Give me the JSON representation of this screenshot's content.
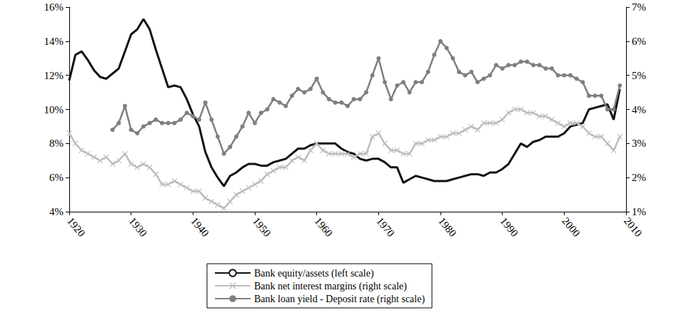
{
  "chart_data": {
    "type": "line",
    "x": [
      1920,
      1921,
      1922,
      1923,
      1924,
      1925,
      1926,
      1927,
      1928,
      1929,
      1930,
      1931,
      1932,
      1933,
      1934,
      1935,
      1936,
      1937,
      1938,
      1939,
      1940,
      1941,
      1942,
      1943,
      1944,
      1945,
      1946,
      1947,
      1948,
      1949,
      1950,
      1951,
      1952,
      1953,
      1954,
      1955,
      1956,
      1957,
      1958,
      1959,
      1960,
      1961,
      1962,
      1963,
      1964,
      1965,
      1966,
      1967,
      1968,
      1969,
      1970,
      1971,
      1972,
      1973,
      1974,
      1975,
      1976,
      1977,
      1978,
      1979,
      1980,
      1981,
      1982,
      1983,
      1984,
      1985,
      1986,
      1987,
      1988,
      1989,
      1990,
      1991,
      1992,
      1993,
      1994,
      1995,
      1996,
      1997,
      1998,
      1999,
      2000,
      2001,
      2002,
      2003,
      2004,
      2005,
      2006,
      2007,
      2008,
      2009
    ],
    "xlim": [
      1920,
      2010
    ],
    "xticks": [
      1920,
      1930,
      1940,
      1950,
      1960,
      1970,
      1980,
      1990,
      2000,
      2010
    ],
    "ylim": [
      4,
      16
    ],
    "yticks": [
      {
        "value": 4,
        "label": "4%"
      },
      {
        "value": 6,
        "label": "6%"
      },
      {
        "value": 8,
        "label": "8%"
      },
      {
        "value": 10,
        "label": "10%"
      },
      {
        "value": 12,
        "label": "12%"
      },
      {
        "value": 14,
        "label": "14%"
      },
      {
        "value": 16,
        "label": "16%"
      }
    ],
    "y2lim": [
      1,
      7
    ],
    "y2ticks": [
      {
        "value": 1,
        "label": "1%"
      },
      {
        "value": 2,
        "label": "2%"
      },
      {
        "value": 3,
        "label": "3%"
      },
      {
        "value": 4,
        "label": "4%"
      },
      {
        "value": 5,
        "label": "5%"
      },
      {
        "value": 6,
        "label": "6%"
      },
      {
        "value": 7,
        "label": "7%"
      }
    ],
    "grid": false,
    "legend": "bottom",
    "series": [
      {
        "name": "Bank equity/assets (left scale)",
        "color": "#111111",
        "marker": "none",
        "line_style": "solid",
        "values": [
          11.7,
          13.2,
          13.4,
          12.9,
          12.3,
          11.9,
          11.8,
          12.1,
          12.4,
          13.4,
          14.4,
          14.7,
          15.3,
          14.7,
          13.5,
          12.4,
          11.3,
          11.4,
          11.3,
          10.6,
          9.7,
          9.0,
          7.5,
          6.6,
          6.0,
          5.5,
          6.1,
          6.3,
          6.6,
          6.8,
          6.8,
          6.7,
          6.7,
          6.9,
          7.0,
          7.1,
          7.4,
          7.7,
          7.7,
          7.9,
          8.0,
          8.0,
          8.0,
          8.0,
          7.7,
          7.5,
          7.4,
          7.1,
          7.0,
          7.1,
          7.1,
          6.9,
          6.6,
          6.6,
          5.7,
          5.9,
          6.1,
          6.0,
          5.9,
          5.8,
          5.8,
          5.8,
          5.9,
          6.0,
          6.1,
          6.2,
          6.2,
          6.1,
          6.3,
          6.3,
          6.5,
          6.8,
          7.4,
          8.0,
          7.8,
          8.1,
          8.2,
          8.4,
          8.4,
          8.4,
          8.6,
          9.0,
          9.1,
          9.2,
          10.0,
          10.1,
          10.2,
          10.3,
          9.4,
          11.2
        ]
      },
      {
        "name": "Bank net interest margins (right scale)",
        "color": "#bdbdbd",
        "marker": "x",
        "line_style": "solid",
        "axis": "y2",
        "values": [
          3.3,
          3.0,
          2.8,
          2.7,
          2.6,
          2.5,
          2.6,
          2.4,
          2.5,
          2.7,
          2.4,
          2.3,
          2.4,
          2.3,
          2.1,
          1.8,
          1.8,
          1.9,
          1.8,
          1.7,
          1.6,
          1.6,
          1.4,
          1.3,
          1.2,
          1.1,
          1.3,
          1.5,
          1.6,
          1.7,
          1.8,
          1.9,
          2.1,
          2.2,
          2.3,
          2.3,
          2.5,
          2.6,
          2.5,
          2.8,
          3.0,
          2.8,
          2.7,
          2.7,
          2.7,
          2.7,
          2.6,
          2.7,
          2.7,
          3.2,
          3.3,
          3.0,
          2.8,
          2.8,
          2.7,
          2.7,
          3.0,
          3.0,
          3.1,
          3.1,
          3.2,
          3.2,
          3.3,
          3.3,
          3.4,
          3.5,
          3.4,
          3.6,
          3.6,
          3.6,
          3.7,
          3.9,
          4.0,
          4.0,
          3.9,
          3.9,
          3.8,
          3.8,
          3.7,
          3.6,
          3.5,
          3.6,
          3.6,
          3.5,
          3.3,
          3.2,
          3.2,
          3.0,
          2.8,
          3.2
        ]
      },
      {
        "name": "Bank loan yield - Deposit rate (right scale)",
        "color": "#7f7f7f",
        "marker": "circle",
        "line_style": "solid",
        "axis": "y2",
        "values": [
          null,
          null,
          null,
          null,
          null,
          null,
          null,
          3.4,
          3.6,
          4.1,
          3.4,
          3.3,
          3.5,
          3.6,
          3.7,
          3.6,
          3.6,
          3.6,
          3.7,
          3.9,
          3.8,
          3.7,
          4.2,
          3.7,
          3.2,
          2.7,
          2.9,
          3.2,
          3.5,
          3.9,
          3.6,
          3.9,
          4.0,
          4.3,
          4.2,
          4.1,
          4.4,
          4.6,
          4.5,
          4.6,
          4.9,
          4.5,
          4.3,
          4.2,
          4.2,
          4.1,
          4.3,
          4.3,
          4.5,
          5.0,
          5.5,
          4.8,
          4.3,
          4.7,
          4.8,
          4.5,
          4.8,
          4.8,
          5.1,
          5.6,
          6.0,
          5.8,
          5.5,
          5.1,
          5.0,
          5.1,
          4.8,
          4.9,
          5.0,
          5.3,
          5.2,
          5.3,
          5.3,
          5.4,
          5.4,
          5.3,
          5.3,
          5.2,
          5.2,
          5.0,
          5.0,
          5.0,
          4.9,
          4.8,
          4.4,
          4.4,
          4.4,
          4.0,
          4.0,
          4.7
        ]
      }
    ]
  }
}
